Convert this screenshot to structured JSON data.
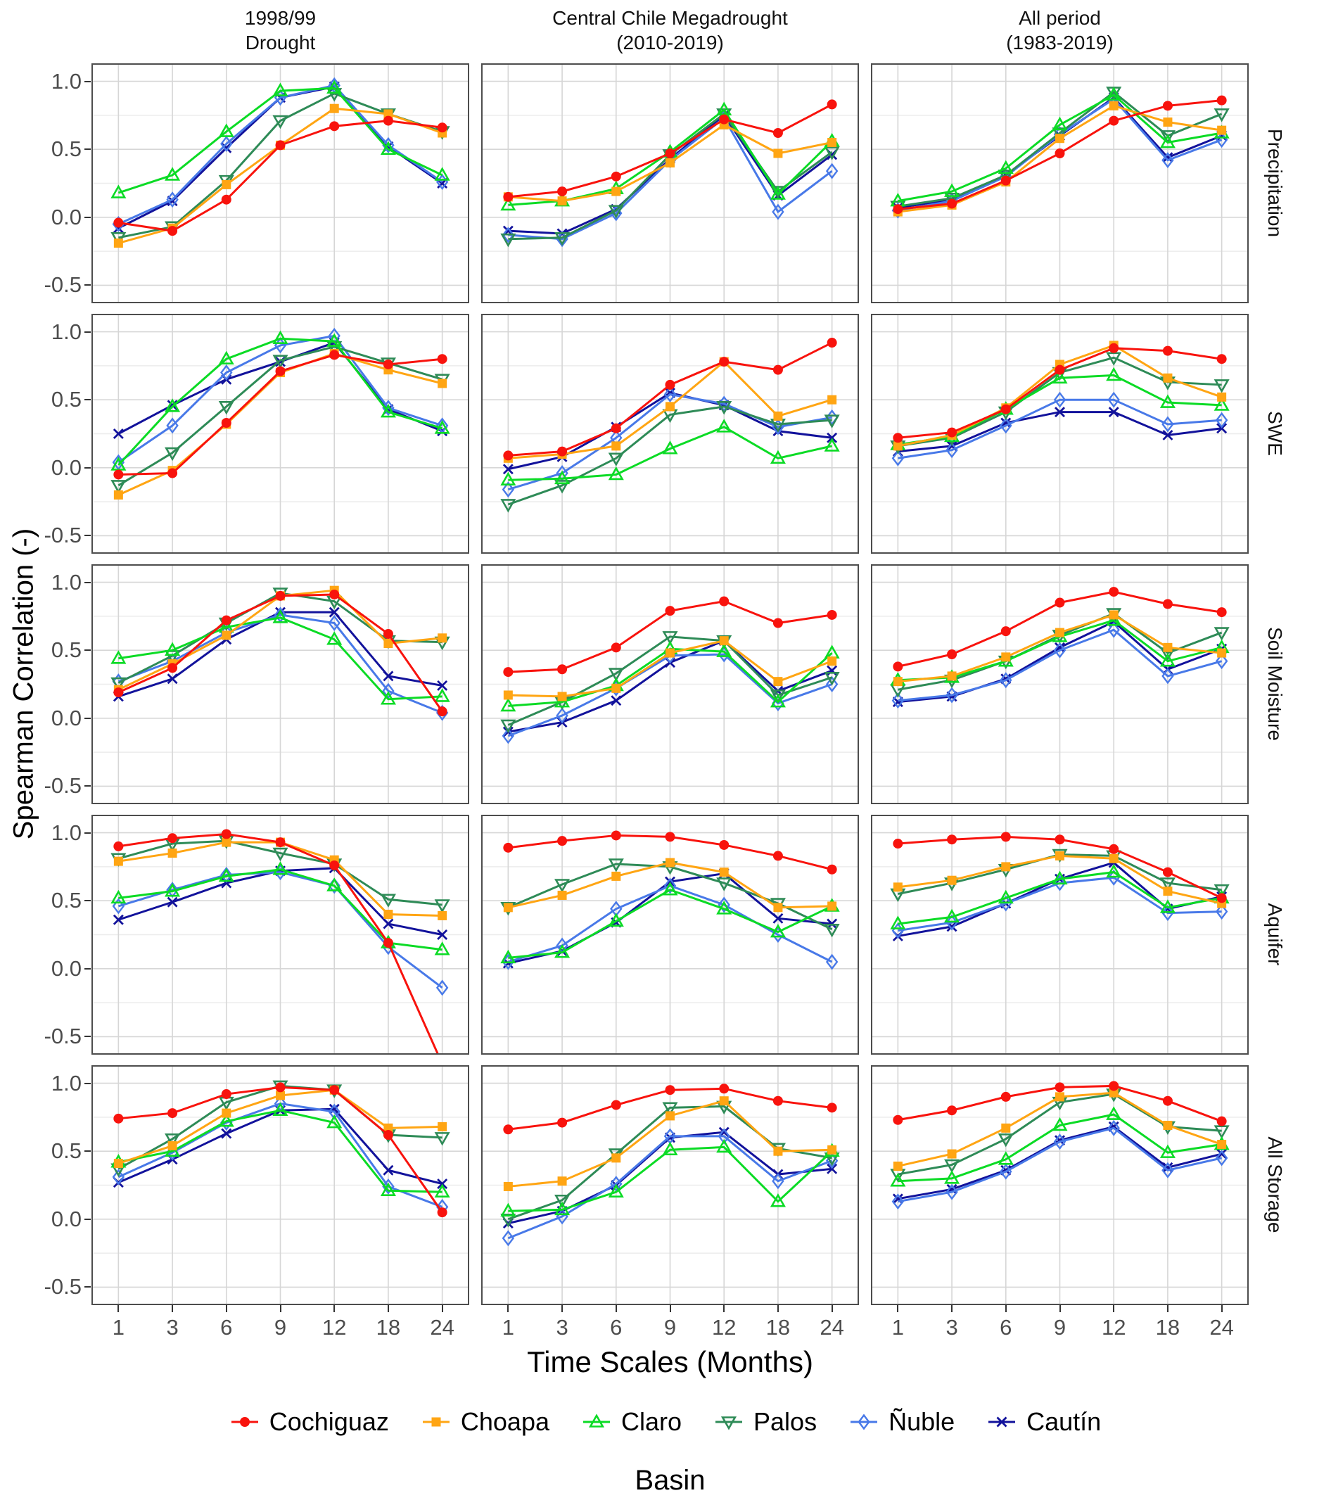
{
  "chart_data": {
    "type": "line",
    "xlabel": "Time Scales (Months)",
    "ylabel": "Spearman Correlation (-)",
    "legend_title": "Basin",
    "x_categories": [
      "1",
      "3",
      "6",
      "9",
      "12",
      "18",
      "24"
    ],
    "y_ticks": [
      {
        "v": 1.0,
        "label": "1.0"
      },
      {
        "v": 0.5,
        "label": "0.5"
      },
      {
        "v": 0.0,
        "label": "0.0"
      },
      {
        "v": -0.5,
        "label": "-0.5"
      }
    ],
    "y_minor": [
      0.75,
      0.25,
      -0.25
    ],
    "ylim": [
      -0.56,
      1.06
    ],
    "grid": "on",
    "legend_position": "bottom",
    "col_titles": [
      "1998/99\nDrought",
      "Central Chile Megadrought\n(2010-2019)",
      "All period\n(1983-2019)"
    ],
    "row_titles": [
      "Precipitation",
      "SWE",
      "Soil Moisture",
      "Aquifer",
      "All Storage"
    ],
    "series": [
      {
        "name": "Cochiguaz",
        "color": "#F8130D",
        "marker": "circle"
      },
      {
        "name": "Choapa",
        "color": "#FFA513",
        "marker": "square"
      },
      {
        "name": "Claro",
        "color": "#0BDB25",
        "marker": "triangle-up"
      },
      {
        "name": "Palos",
        "color": "#2E8B57",
        "marker": "triangle-down"
      },
      {
        "name": "Ñuble",
        "color": "#4879E8",
        "marker": "diamond"
      },
      {
        "name": "Cautín",
        "color": "#12129B",
        "marker": "cross"
      }
    ],
    "panels": [
      {
        "row": "Precipitation",
        "col": "1998/99 Drought",
        "series_values": [
          [
            -0.04,
            -0.1,
            0.13,
            0.53,
            0.67,
            0.71,
            0.66
          ],
          [
            -0.19,
            -0.08,
            0.24,
            0.53,
            0.8,
            0.76,
            0.62
          ],
          [
            0.18,
            0.31,
            0.63,
            0.93,
            0.95,
            0.5,
            0.31
          ],
          [
            -0.15,
            -0.07,
            0.27,
            0.71,
            0.91,
            0.76,
            0.63
          ],
          [
            -0.05,
            0.13,
            0.54,
            0.88,
            0.97,
            0.53,
            0.26
          ],
          [
            -0.08,
            0.12,
            0.51,
            0.88,
            0.96,
            0.52,
            0.25
          ]
        ]
      },
      {
        "row": "Precipitation",
        "col": "Central Chile Megadrought (2010-2019)",
        "series_values": [
          [
            0.15,
            0.19,
            0.3,
            0.47,
            0.72,
            0.62,
            0.83
          ],
          [
            0.15,
            0.12,
            0.19,
            0.4,
            0.68,
            0.47,
            0.55
          ],
          [
            0.09,
            0.12,
            0.21,
            0.48,
            0.79,
            0.17,
            0.56
          ],
          [
            -0.16,
            -0.15,
            0.05,
            0.46,
            0.76,
            0.19,
            0.48
          ],
          [
            -0.13,
            -0.16,
            0.03,
            0.42,
            0.73,
            0.04,
            0.34
          ],
          [
            -0.1,
            -0.12,
            0.06,
            0.43,
            0.75,
            0.16,
            0.46
          ]
        ]
      },
      {
        "row": "Precipitation",
        "col": "All period (1983-2019)",
        "series_values": [
          [
            0.06,
            0.1,
            0.27,
            0.47,
            0.71,
            0.82,
            0.86
          ],
          [
            0.04,
            0.09,
            0.26,
            0.58,
            0.82,
            0.7,
            0.64
          ],
          [
            0.12,
            0.19,
            0.36,
            0.68,
            0.9,
            0.55,
            0.62
          ],
          [
            0.08,
            0.14,
            0.31,
            0.62,
            0.92,
            0.6,
            0.76
          ],
          [
            0.05,
            0.12,
            0.3,
            0.61,
            0.87,
            0.42,
            0.57
          ],
          [
            0.07,
            0.13,
            0.31,
            0.6,
            0.88,
            0.44,
            0.6
          ]
        ]
      },
      {
        "row": "SWE",
        "col": "1998/99 Drought",
        "series_values": [
          [
            -0.05,
            -0.04,
            0.33,
            0.71,
            0.83,
            0.76,
            0.8
          ],
          [
            -0.2,
            -0.02,
            0.32,
            0.7,
            0.84,
            0.72,
            0.62
          ],
          [
            0.02,
            0.45,
            0.8,
            0.95,
            0.93,
            0.41,
            0.29
          ],
          [
            -0.13,
            0.11,
            0.45,
            0.79,
            0.89,
            0.77,
            0.65
          ],
          [
            0.04,
            0.31,
            0.7,
            0.9,
            0.97,
            0.44,
            0.31
          ],
          [
            0.25,
            0.46,
            0.65,
            0.78,
            0.92,
            0.43,
            0.27
          ]
        ]
      },
      {
        "row": "SWE",
        "col": "Central Chile Megadrought (2010-2019)",
        "series_values": [
          [
            0.09,
            0.12,
            0.29,
            0.61,
            0.78,
            0.72,
            0.92
          ],
          [
            0.07,
            0.1,
            0.16,
            0.45,
            0.78,
            0.38,
            0.5
          ],
          [
            -0.09,
            -0.08,
            -0.05,
            0.14,
            0.3,
            0.07,
            0.16
          ],
          [
            -0.27,
            -0.13,
            0.07,
            0.39,
            0.45,
            0.32,
            0.35
          ],
          [
            -0.16,
            -0.04,
            0.22,
            0.54,
            0.47,
            0.3,
            0.37
          ],
          [
            -0.01,
            0.08,
            0.3,
            0.55,
            0.46,
            0.27,
            0.22
          ]
        ]
      },
      {
        "row": "SWE",
        "col": "All period (1983-2019)",
        "series_values": [
          [
            0.22,
            0.26,
            0.43,
            0.72,
            0.88,
            0.86,
            0.8
          ],
          [
            0.16,
            0.24,
            0.44,
            0.76,
            0.9,
            0.66,
            0.52
          ],
          [
            0.17,
            0.23,
            0.43,
            0.66,
            0.68,
            0.48,
            0.46
          ],
          [
            0.16,
            0.22,
            0.41,
            0.7,
            0.81,
            0.63,
            0.61
          ],
          [
            0.07,
            0.13,
            0.31,
            0.5,
            0.5,
            0.32,
            0.35
          ],
          [
            0.12,
            0.16,
            0.33,
            0.41,
            0.41,
            0.24,
            0.29
          ]
        ]
      },
      {
        "row": "Soil Moisture",
        "col": "1998/99 Drought",
        "series_values": [
          [
            0.19,
            0.37,
            0.72,
            0.9,
            0.91,
            0.62,
            0.05
          ],
          [
            0.21,
            0.4,
            0.61,
            0.9,
            0.94,
            0.55,
            0.59
          ],
          [
            0.44,
            0.5,
            0.67,
            0.74,
            0.58,
            0.14,
            0.16
          ],
          [
            0.26,
            0.46,
            0.7,
            0.92,
            0.86,
            0.57,
            0.56
          ],
          [
            0.27,
            0.42,
            0.63,
            0.76,
            0.7,
            0.2,
            0.04
          ],
          [
            0.16,
            0.29,
            0.58,
            0.78,
            0.78,
            0.31,
            0.24
          ]
        ]
      },
      {
        "row": "Soil Moisture",
        "col": "Central Chile Megadrought (2010-2019)",
        "series_values": [
          [
            0.34,
            0.36,
            0.52,
            0.79,
            0.86,
            0.7,
            0.76
          ],
          [
            0.17,
            0.16,
            0.22,
            0.48,
            0.57,
            0.27,
            0.42
          ],
          [
            0.09,
            0.12,
            0.24,
            0.51,
            0.49,
            0.12,
            0.48
          ],
          [
            -0.05,
            0.12,
            0.33,
            0.6,
            0.57,
            0.17,
            0.3
          ],
          [
            -0.13,
            0.02,
            0.22,
            0.46,
            0.47,
            0.11,
            0.25
          ],
          [
            -0.1,
            -0.03,
            0.13,
            0.41,
            0.57,
            0.2,
            0.35
          ]
        ]
      },
      {
        "row": "Soil Moisture",
        "col": "All period (1983-2019)",
        "series_values": [
          [
            0.38,
            0.47,
            0.64,
            0.85,
            0.93,
            0.84,
            0.78
          ],
          [
            0.27,
            0.31,
            0.45,
            0.63,
            0.76,
            0.52,
            0.48
          ],
          [
            0.28,
            0.3,
            0.42,
            0.6,
            0.72,
            0.42,
            0.52
          ],
          [
            0.21,
            0.28,
            0.42,
            0.61,
            0.77,
            0.48,
            0.63
          ],
          [
            0.13,
            0.17,
            0.28,
            0.5,
            0.65,
            0.31,
            0.42
          ],
          [
            0.12,
            0.16,
            0.29,
            0.52,
            0.71,
            0.36,
            0.51
          ]
        ]
      },
      {
        "row": "Aquifer",
        "col": "1998/99 Drought",
        "series_values": [
          [
            0.9,
            0.96,
            0.99,
            0.93,
            0.76,
            0.19,
            -0.7
          ],
          [
            0.79,
            0.85,
            0.93,
            0.93,
            0.8,
            0.4,
            0.39
          ],
          [
            0.52,
            0.57,
            0.68,
            0.73,
            0.61,
            0.19,
            0.14
          ],
          [
            0.81,
            0.92,
            0.94,
            0.85,
            0.77,
            0.51,
            0.47
          ],
          [
            0.46,
            0.58,
            0.69,
            0.71,
            0.61,
            0.16,
            -0.14
          ],
          [
            0.36,
            0.49,
            0.63,
            0.72,
            0.74,
            0.33,
            0.25
          ]
        ]
      },
      {
        "row": "Aquifer",
        "col": "Central Chile Megadrought (2010-2019)",
        "series_values": [
          [
            0.89,
            0.94,
            0.98,
            0.97,
            0.91,
            0.83,
            0.73
          ],
          [
            0.45,
            0.54,
            0.68,
            0.78,
            0.71,
            0.45,
            0.46
          ],
          [
            0.08,
            0.12,
            0.35,
            0.58,
            0.44,
            0.27,
            0.46
          ],
          [
            0.45,
            0.62,
            0.77,
            0.75,
            0.63,
            0.48,
            0.29
          ],
          [
            0.05,
            0.17,
            0.44,
            0.61,
            0.47,
            0.25,
            0.05
          ],
          [
            0.04,
            0.13,
            0.34,
            0.64,
            0.7,
            0.37,
            0.33
          ]
        ]
      },
      {
        "row": "Aquifer",
        "col": "All period (1983-2019)",
        "series_values": [
          [
            0.92,
            0.95,
            0.97,
            0.95,
            0.88,
            0.71,
            0.52
          ],
          [
            0.6,
            0.65,
            0.75,
            0.83,
            0.81,
            0.57,
            0.48
          ],
          [
            0.33,
            0.38,
            0.52,
            0.66,
            0.71,
            0.45,
            0.52
          ],
          [
            0.55,
            0.63,
            0.73,
            0.84,
            0.83,
            0.63,
            0.58
          ],
          [
            0.28,
            0.34,
            0.48,
            0.63,
            0.67,
            0.41,
            0.42
          ],
          [
            0.24,
            0.31,
            0.48,
            0.66,
            0.78,
            0.44,
            0.53
          ]
        ]
      },
      {
        "row": "All Storage",
        "col": "1998/99 Drought",
        "series_values": [
          [
            0.74,
            0.78,
            0.92,
            0.97,
            0.95,
            0.62,
            0.05
          ],
          [
            0.41,
            0.54,
            0.78,
            0.91,
            0.95,
            0.67,
            0.68
          ],
          [
            0.42,
            0.5,
            0.72,
            0.8,
            0.71,
            0.21,
            0.2
          ],
          [
            0.37,
            0.59,
            0.86,
            0.98,
            0.95,
            0.62,
            0.6
          ],
          [
            0.31,
            0.49,
            0.71,
            0.85,
            0.79,
            0.24,
            0.09
          ],
          [
            0.27,
            0.44,
            0.63,
            0.8,
            0.81,
            0.36,
            0.26
          ]
        ]
      },
      {
        "row": "All Storage",
        "col": "Central Chile Megadrought (2010-2019)",
        "series_values": [
          [
            0.66,
            0.71,
            0.84,
            0.95,
            0.96,
            0.87,
            0.82
          ],
          [
            0.24,
            0.28,
            0.45,
            0.76,
            0.87,
            0.5,
            0.51
          ],
          [
            0.06,
            0.07,
            0.2,
            0.51,
            0.53,
            0.13,
            0.5
          ],
          [
            0.0,
            0.14,
            0.48,
            0.82,
            0.83,
            0.52,
            0.45
          ],
          [
            -0.14,
            0.02,
            0.26,
            0.61,
            0.61,
            0.28,
            0.43
          ],
          [
            -0.03,
            0.06,
            0.25,
            0.6,
            0.64,
            0.33,
            0.37
          ]
        ]
      },
      {
        "row": "All Storage",
        "col": "All period (1983-2019)",
        "series_values": [
          [
            0.73,
            0.8,
            0.9,
            0.97,
            0.98,
            0.87,
            0.72
          ],
          [
            0.39,
            0.48,
            0.67,
            0.9,
            0.93,
            0.69,
            0.55
          ],
          [
            0.28,
            0.3,
            0.44,
            0.69,
            0.77,
            0.49,
            0.55
          ],
          [
            0.33,
            0.4,
            0.59,
            0.86,
            0.92,
            0.68,
            0.65
          ],
          [
            0.13,
            0.2,
            0.35,
            0.57,
            0.67,
            0.36,
            0.45
          ],
          [
            0.15,
            0.22,
            0.36,
            0.58,
            0.68,
            0.38,
            0.48
          ]
        ]
      }
    ],
    "style": {
      "major_grid": "#D6D6D6",
      "minor_grid": "#ECECEC",
      "panel_border": "#4D4D4D",
      "tick_color": "#333333",
      "tick_label_color": "#4D4D4D"
    }
  }
}
